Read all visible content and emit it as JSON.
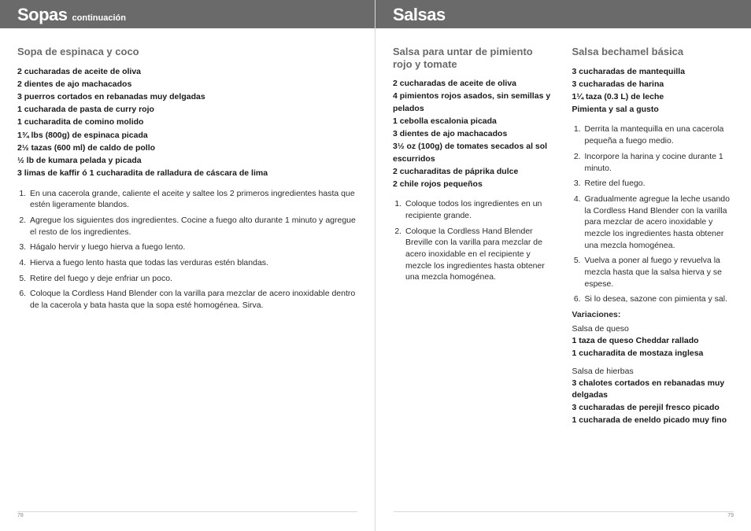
{
  "left_header": {
    "title": "Sopas",
    "sub": "continuación"
  },
  "right_header": {
    "title": "Salsas"
  },
  "sopa": {
    "title": "Sopa de espinaca y coco",
    "ing": [
      "2 cucharadas de aceite de oliva",
      "2 dientes de ajo machacados",
      "3 puerros cortados en rebanadas muy delgadas",
      "1 cucharada de pasta de curry rojo",
      "1 cucharadita de comino molido",
      "1¾ lbs (800g) de espinaca picada",
      "2½ tazas (600 ml) de caldo de pollo",
      "½ lb de kumara pelada y picada",
      "3 limas de kaffir ó 1 cucharadita de ralladura de cáscara de lima"
    ],
    "steps": [
      "En una cacerola grande, caliente el aceite y saltee los 2 primeros ingredientes hasta que estén ligeramente blandos.",
      "Agregue los siguientes dos ingredientes. Cocine a fuego alto durante 1 minuto y agregue el resto de los ingredientes.",
      "Hágalo hervir y luego hierva a fuego lento.",
      "Hierva a fuego lento hasta que todas las verduras estén blandas.",
      "Retire del fuego y deje enfriar un poco.",
      "Coloque la Cordless Hand Blender con la varilla para mezclar de acero inoxidable dentro de la cacerola y bata hasta que la sopa esté homogénea. Sirva."
    ]
  },
  "salsa1": {
    "title": "Salsa para untar de pimiento rojo y tomate",
    "ing": [
      "2 cucharadas de aceite de oliva",
      "4 pimientos rojos asados, sin semillas y pelados",
      "1 cebolla escalonia picada",
      "3 dientes de ajo machacados",
      "3½ oz (100g) de tomates secados al sol escurridos",
      "2 cucharaditas de páprika dulce",
      "2 chile rojos pequeños"
    ],
    "steps": [
      "Coloque todos los ingredientes en un recipiente grande.",
      "Coloque la Cordless Hand Blender Breville con la varilla para mezclar de acero inoxidable en el recipiente y mezcle los ingredientes hasta obtener una mezcla homogénea."
    ]
  },
  "salsa2": {
    "title": "Salsa bechamel básica",
    "ing": [
      "3 cucharadas de mantequilla",
      "3 cucharadas de harina",
      "1¼ taza (0.3 L) de leche",
      "Pimienta y sal a gusto"
    ],
    "steps": [
      "Derrita la mantequilla en una cacerola pequeña a fuego medio.",
      "Incorpore la harina y cocine durante 1 minuto.",
      "Retire del fuego.",
      "Gradualmente agregue la leche usando la Cordless Hand Blender con la varilla para mezclar de acero inoxidable y mezcle los ingredientes hasta obtener una mezcla homogénea.",
      "Vuelva a poner al fuego y revuelva la mezcla hasta que la salsa hierva y se espese.",
      "Si lo desea, sazone con pimienta y sal."
    ],
    "varhead": "Variaciones:",
    "var1label": "Salsa de queso",
    "var1": [
      "1 taza de queso Cheddar rallado",
      "1 cucharadita de mostaza inglesa"
    ],
    "var2label": "Salsa de hierbas",
    "var2": [
      "3 chalotes cortados en rebanadas muy delgadas",
      "3 cucharadas de perejil fresco picado",
      "1 cucharada de eneldo picado muy fino"
    ]
  },
  "page_left": "78",
  "page_right": "79"
}
